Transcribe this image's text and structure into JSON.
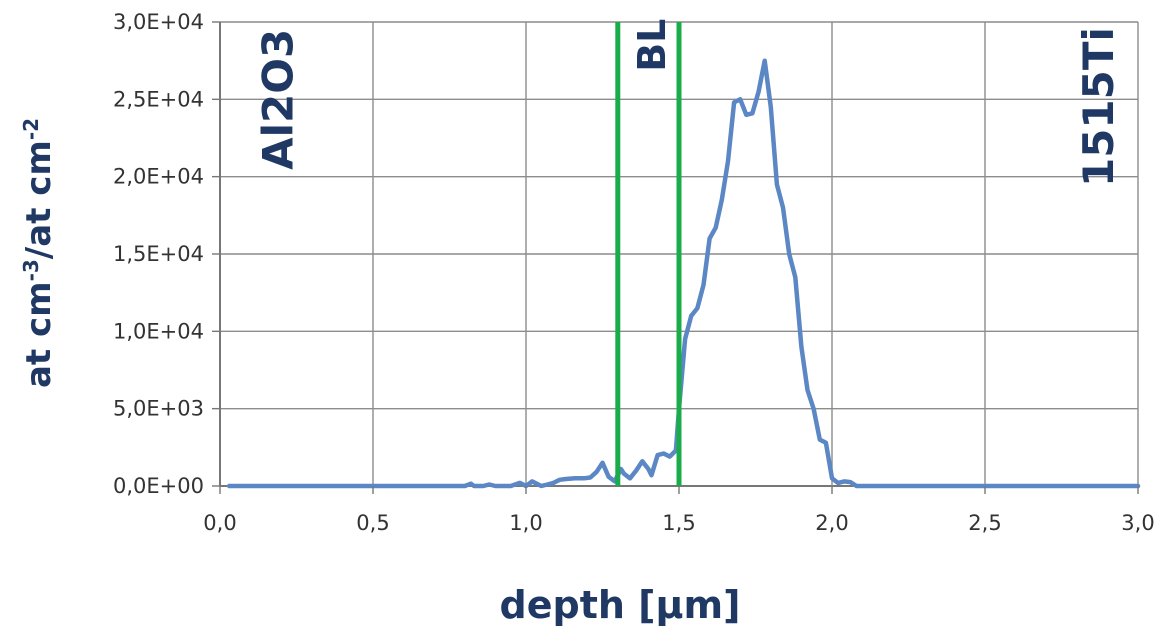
{
  "chart_data": {
    "type": "line",
    "xlabel": "depth [µm]",
    "ylabel": {
      "parts": [
        "at cm",
        "-3",
        "/at cm",
        "-2"
      ]
    },
    "xlim": [
      0,
      3
    ],
    "ylim": [
      0,
      30000
    ],
    "x_ticks": [
      0,
      0.5,
      1.0,
      1.5,
      2.0,
      2.5,
      3.0
    ],
    "x_tick_labels": [
      "0,0",
      "0,5",
      "1,0",
      "1,5",
      "2,0",
      "2,5",
      "3,0"
    ],
    "y_ticks": [
      0,
      5000,
      10000,
      15000,
      20000,
      25000,
      30000
    ],
    "y_tick_labels": [
      "0,0E+00",
      "5,0E+03",
      "1,0E+04",
      "1,5E+04",
      "2,0E+04",
      "2,5E+04",
      "3,0E+04"
    ],
    "grid": true,
    "legend": "none",
    "series": [
      {
        "color": "#5b87c5",
        "x": [
          0.03,
          0.8,
          0.81,
          0.82,
          0.83,
          0.86,
          0.88,
          0.9,
          0.92,
          0.95,
          0.98,
          1.0,
          1.02,
          1.05,
          1.07,
          1.09,
          1.11,
          1.13,
          1.16,
          1.19,
          1.21,
          1.23,
          1.25,
          1.27,
          1.29,
          1.31,
          1.32,
          1.34,
          1.36,
          1.38,
          1.4,
          1.41,
          1.43,
          1.45,
          1.47,
          1.49,
          1.5,
          1.52,
          1.54,
          1.56,
          1.58,
          1.6,
          1.62,
          1.64,
          1.66,
          1.68,
          1.7,
          1.72,
          1.74,
          1.76,
          1.78,
          1.8,
          1.82,
          1.84,
          1.86,
          1.88,
          1.9,
          1.92,
          1.94,
          1.96,
          1.98,
          2.0,
          2.02,
          2.04,
          2.06,
          2.08,
          2.1,
          2.12,
          2.14,
          2.16,
          2.18,
          2.2,
          2.22,
          2.24,
          3.0
        ],
        "y": [
          0,
          0,
          80,
          150,
          0,
          0,
          100,
          0,
          0,
          0,
          200,
          0,
          300,
          0,
          100,
          200,
          400,
          450,
          500,
          500,
          550,
          900,
          1500,
          600,
          300,
          1100,
          800,
          500,
          1000,
          1600,
          1100,
          700,
          2000,
          2100,
          1900,
          2300,
          5000,
          9500,
          11000,
          11500,
          13000,
          16000,
          16700,
          18500,
          21000,
          24800,
          25000,
          24000,
          24100,
          25500,
          27500,
          24500,
          19500,
          18000,
          15000,
          13500,
          9000,
          6200,
          5000,
          3000,
          2800,
          500,
          200,
          300,
          250,
          0,
          0,
          0,
          0,
          0,
          0,
          0,
          0,
          0,
          0
        ]
      }
    ],
    "vertical_lines": [
      {
        "x": 1.3,
        "color": "#1aac4a"
      },
      {
        "x": 1.5,
        "color": "#1aac4a"
      }
    ],
    "annotations": [
      {
        "text": "Al2O3",
        "x": 0.2,
        "y": 25000
      },
      {
        "text": "BL",
        "x": 1.42,
        "y": 28500
      },
      {
        "text": "1515Ti",
        "x": 2.88,
        "y": 24500
      }
    ]
  }
}
